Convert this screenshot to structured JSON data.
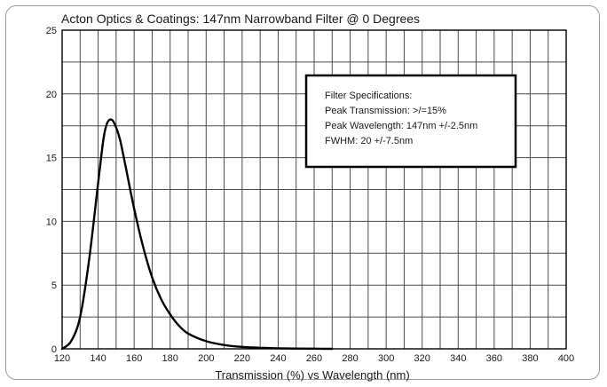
{
  "chart_data": {
    "type": "line",
    "title": "Acton Optics & Coatings: 147nm Narrowband Filter @ 0 Degrees",
    "xlabel": "Transmission (%) vs Wavelength (nm)",
    "ylabel": "",
    "xlim": [
      120,
      400
    ],
    "ylim": [
      0,
      25
    ],
    "x_ticks": [
      "120",
      "140",
      "160",
      "180",
      "200",
      "220",
      "240",
      "260",
      "280",
      "300",
      "320",
      "340",
      "360",
      "380",
      "400"
    ],
    "y_ticks": [
      "0",
      "5",
      "10",
      "15",
      "20",
      "25"
    ],
    "grid": true,
    "series": [
      {
        "x": [
          120,
          125,
          130,
          135,
          140,
          143,
          145,
          147,
          149,
          152,
          155,
          160,
          165,
          170,
          175,
          180,
          185,
          190,
          200,
          210,
          220,
          230,
          240,
          250,
          260,
          270
        ],
        "y": [
          0,
          0.6,
          2.5,
          7,
          13,
          16.5,
          17.7,
          18,
          17.7,
          16.5,
          14.5,
          11,
          8,
          5.6,
          3.9,
          2.7,
          1.8,
          1.2,
          0.6,
          0.3,
          0.15,
          0.08,
          0.04,
          0.02,
          0.01,
          0
        ]
      }
    ],
    "annotation": {
      "heading": "Filter Specifications:",
      "lines": [
        "Peak Transmission: >/=15%",
        "Peak Wavelength: 147nm +/-2.5nm",
        "FWHM: 20 +/-7.5nm"
      ]
    },
    "colors": {
      "line": "#000000",
      "grid": "#4a4a4a",
      "frame": "#9a9a9a"
    }
  }
}
